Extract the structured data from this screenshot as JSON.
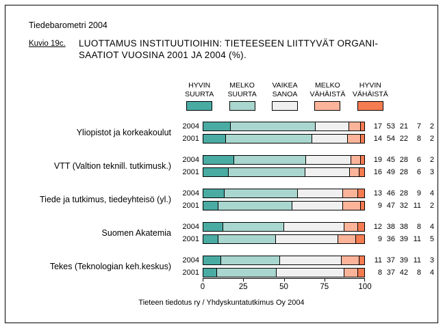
{
  "header": {
    "brand": "Tiedebarometri 2004",
    "figure_label": "Kuvio 19c.",
    "title_line1": "LUOTTAMUS INSTITUUTIOIHIN: TIETEESEEN LIITTYVÄT ORGANI-",
    "title_line2": "SAATIOT VUOSINA 2001 JA 2004 (%)."
  },
  "legend": [
    {
      "line1": "HYVIN",
      "line2": "SUURTA",
      "color": "#4aaba3"
    },
    {
      "line1": "MELKO",
      "line2": "SUURTA",
      "color": "#a9d6ce"
    },
    {
      "line1": "VAIKEA",
      "line2": "SANOA",
      "color": "#f0f0f0"
    },
    {
      "line1": "MELKO",
      "line2": "VÄHÄISTÄ",
      "color": "#fbb49a"
    },
    {
      "line1": "HYVIN",
      "line2": "VÄHÄISTÄ",
      "color": "#f57b51"
    }
  ],
  "chart_data": {
    "type": "bar",
    "orientation": "horizontal",
    "stacked": true,
    "title": "LUOTTAMUS INSTITUUTIOIHIN: TIETEESEEN LIITTYVÄT ORGANISAATIOT VUOSINA 2001 JA 2004 (%)",
    "categories": [
      "HYVIN SUURTA",
      "MELKO SUURTA",
      "VAIKEA SANOA",
      "MELKO VÄHÄISTÄ",
      "HYVIN VÄHÄISTÄ"
    ],
    "colors": [
      "#4aaba3",
      "#a9d6ce",
      "#f0f0f0",
      "#fbb49a",
      "#f57b51"
    ],
    "xlim": [
      0,
      100
    ],
    "x_ticks": [
      "0",
      "25",
      "50",
      "75",
      "100"
    ],
    "legend_position": "top",
    "grid": false,
    "groups": [
      {
        "label": "Yliopistot ja korkeakoulut",
        "rows": [
          {
            "year": "2004",
            "values": [
              17,
              53,
              21,
              7,
              2
            ]
          },
          {
            "year": "2001",
            "values": [
              14,
              54,
              22,
              8,
              2
            ]
          }
        ]
      },
      {
        "label": "VTT (Valtion teknill. tutkimusk.)",
        "rows": [
          {
            "year": "2004",
            "values": [
              19,
              45,
              28,
              6,
              2
            ]
          },
          {
            "year": "2001",
            "values": [
              16,
              49,
              28,
              6,
              3
            ]
          }
        ]
      },
      {
        "label": "Tiede ja tutkimus, tiedeyhteisö (yl.)",
        "rows": [
          {
            "year": "2004",
            "values": [
              13,
              46,
              28,
              9,
              4
            ]
          },
          {
            "year": "2001",
            "values": [
              9,
              47,
              32,
              11,
              2
            ]
          }
        ]
      },
      {
        "label": "Suomen Akatemia",
        "rows": [
          {
            "year": "2004",
            "values": [
              12,
              38,
              38,
              8,
              4
            ]
          },
          {
            "year": "2001",
            "values": [
              9,
              36,
              39,
              11,
              5
            ]
          }
        ]
      },
      {
        "label": "Tekes (Teknologian keh.keskus)",
        "rows": [
          {
            "year": "2004",
            "values": [
              11,
              37,
              39,
              11,
              3
            ]
          },
          {
            "year": "2001",
            "values": [
              8,
              37,
              42,
              8,
              4
            ]
          }
        ]
      }
    ]
  },
  "footer": {
    "source": "Tieteen tiedotus ry / Yhdyskuntatutkimus Oy 2004"
  }
}
